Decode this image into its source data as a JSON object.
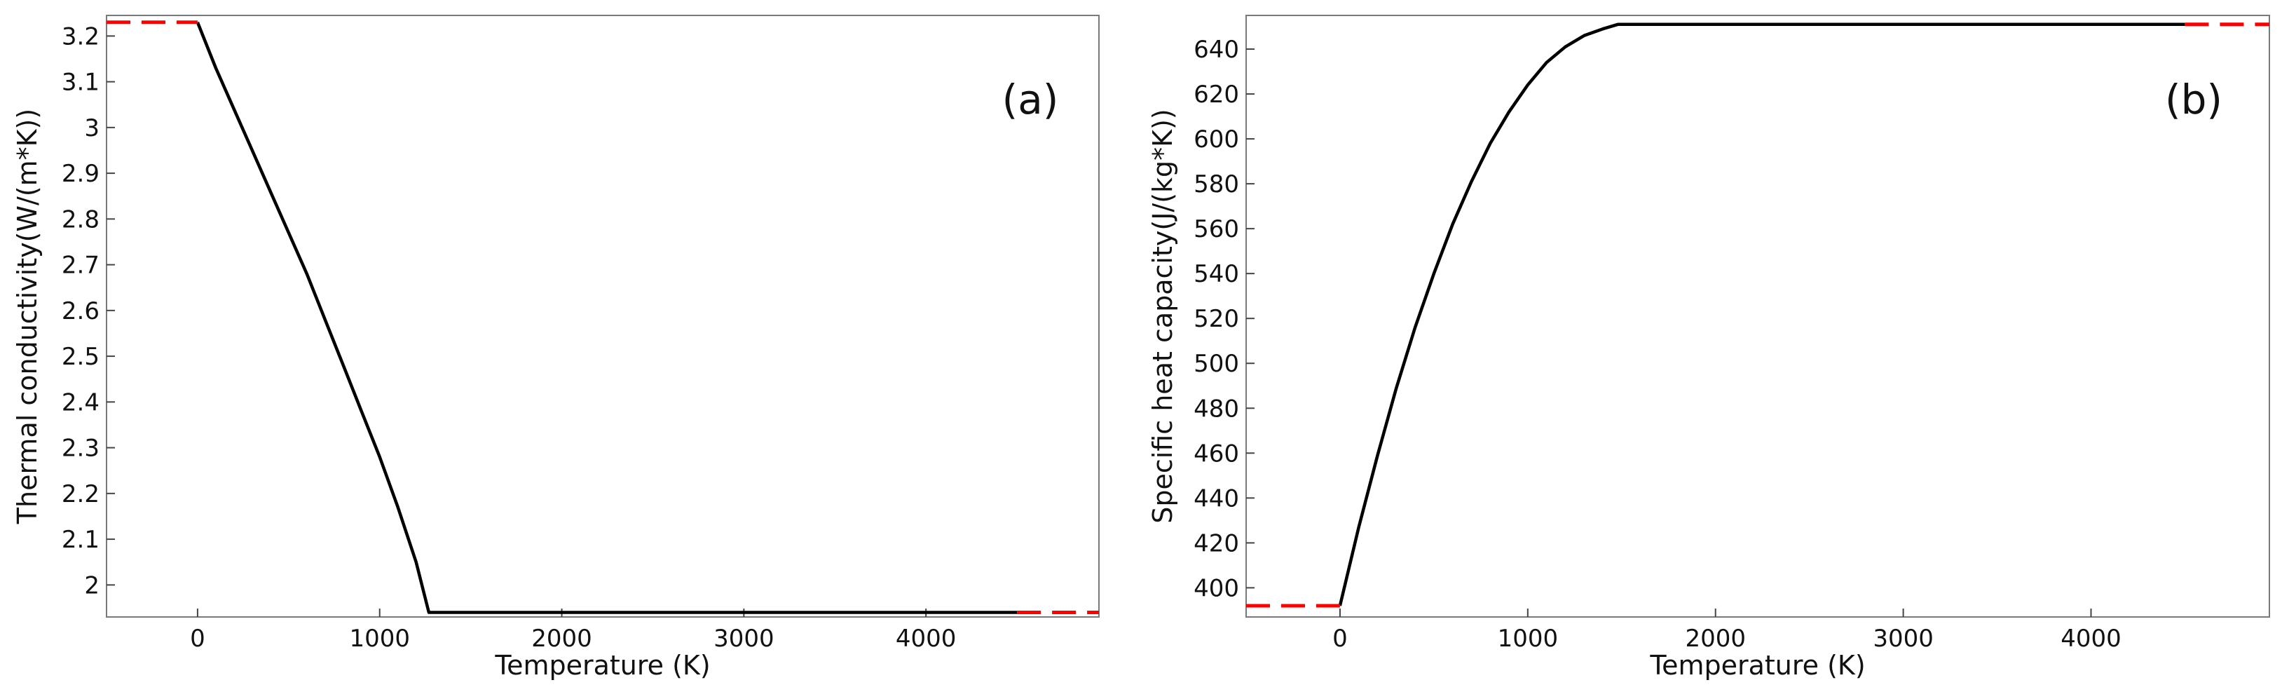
{
  "chart_data": [
    {
      "type": "line",
      "title": "",
      "panel_label": "(a)",
      "xlabel": "Temperature (K)",
      "ylabel": "Thermal conductivity(W/(m*K))",
      "xlim": [
        -500,
        4950
      ],
      "ylim": [
        1.93,
        3.245
      ],
      "xticks": [
        0,
        1000,
        2000,
        3000,
        4000
      ],
      "xtick_labels": [
        "0",
        "1000",
        "2000",
        "3000",
        "4000"
      ],
      "yticks": [
        2.0,
        2.1,
        2.2,
        2.3,
        2.4,
        2.5,
        2.6,
        2.7,
        2.8,
        2.9,
        3.0,
        3.1,
        3.2
      ],
      "ytick_labels": [
        "2",
        "2.1",
        "2.2",
        "2.3",
        "2.4",
        "2.5",
        "2.6",
        "2.7",
        "2.8",
        "2.9",
        "3",
        "3.1",
        "3.2"
      ],
      "grid": false,
      "series": [
        {
          "style": "solid",
          "color": "#000000",
          "x": [
            0,
            100,
            200,
            300,
            400,
            500,
            600,
            700,
            800,
            900,
            1000,
            1100,
            1200,
            1270,
            1500,
            2000,
            2500,
            3000,
            3500,
            4000,
            4500
          ],
          "y": [
            3.23,
            3.13,
            3.04,
            2.95,
            2.86,
            2.77,
            2.68,
            2.58,
            2.48,
            2.38,
            2.28,
            2.17,
            2.05,
            1.94,
            1.94,
            1.94,
            1.94,
            1.94,
            1.94,
            1.94,
            1.94
          ]
        },
        {
          "style": "dashed",
          "color": "#ff0000",
          "x": [
            -500,
            0
          ],
          "y": [
            3.23,
            3.23
          ]
        },
        {
          "style": "dashed",
          "color": "#ff0000",
          "x": [
            4500,
            4950
          ],
          "y": [
            1.94,
            1.94
          ]
        }
      ]
    },
    {
      "type": "line",
      "title": "",
      "panel_label": "(b)",
      "xlabel": "Temperature (K)",
      "ylabel": "Specific heat capacity(J/(kg*K))",
      "xlim": [
        -500,
        4950
      ],
      "ylim": [
        387,
        655
      ],
      "xticks": [
        0,
        1000,
        2000,
        3000,
        4000
      ],
      "xtick_labels": [
        "0",
        "1000",
        "2000",
        "3000",
        "4000"
      ],
      "yticks": [
        400,
        420,
        440,
        460,
        480,
        500,
        520,
        540,
        560,
        580,
        600,
        620,
        640
      ],
      "ytick_labels": [
        "400",
        "420",
        "440",
        "460",
        "480",
        "500",
        "520",
        "540",
        "560",
        "580",
        "600",
        "620",
        "640"
      ],
      "grid": false,
      "series": [
        {
          "style": "solid",
          "color": "#000000",
          "x": [
            0,
            100,
            200,
            300,
            400,
            500,
            600,
            700,
            800,
            900,
            1000,
            1100,
            1200,
            1300,
            1400,
            1480,
            2000,
            2500,
            3000,
            3500,
            4000,
            4500
          ],
          "y": [
            392,
            427,
            459,
            489,
            516,
            540,
            562,
            581,
            598,
            612,
            624,
            634,
            641,
            646,
            649,
            651,
            651,
            651,
            651,
            651,
            651,
            651
          ]
        },
        {
          "style": "dashed",
          "color": "#ff0000",
          "x": [
            -500,
            0
          ],
          "y": [
            392,
            392
          ]
        },
        {
          "style": "dashed",
          "color": "#ff0000",
          "x": [
            4500,
            4950
          ],
          "y": [
            651,
            651
          ]
        }
      ]
    }
  ]
}
